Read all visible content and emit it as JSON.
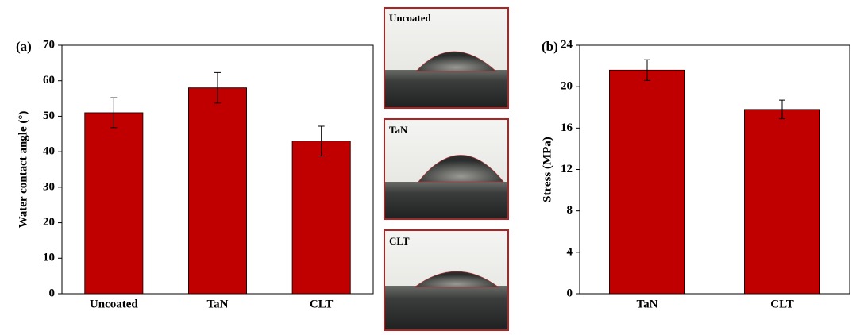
{
  "chart_data": [
    {
      "type": "bar",
      "panel_label": "(a)",
      "y_label": "Water contact angle (°)",
      "categories": [
        "Uncoated",
        "TaN",
        "CLT"
      ],
      "values": [
        51,
        58,
        43
      ],
      "errors": [
        4.2,
        4.3,
        4.2
      ],
      "color": "#c00000",
      "ylim": [
        0,
        70
      ],
      "yticks": [
        0,
        10,
        20,
        30,
        40,
        50,
        60,
        70
      ]
    },
    {
      "type": "bar",
      "panel_label": "(b)",
      "y_label": "Stress (MPa)",
      "categories": [
        "TaN",
        "CLT"
      ],
      "values": [
        21.6,
        17.8
      ],
      "errors": [
        1.0,
        0.9
      ],
      "color": "#c00000",
      "ylim": [
        0,
        24
      ],
      "yticks": [
        0,
        4,
        8,
        12,
        16,
        20,
        24
      ]
    }
  ],
  "images": [
    {
      "label": "Uncoated"
    },
    {
      "label": "TaN"
    },
    {
      "label": "CLT"
    }
  ]
}
